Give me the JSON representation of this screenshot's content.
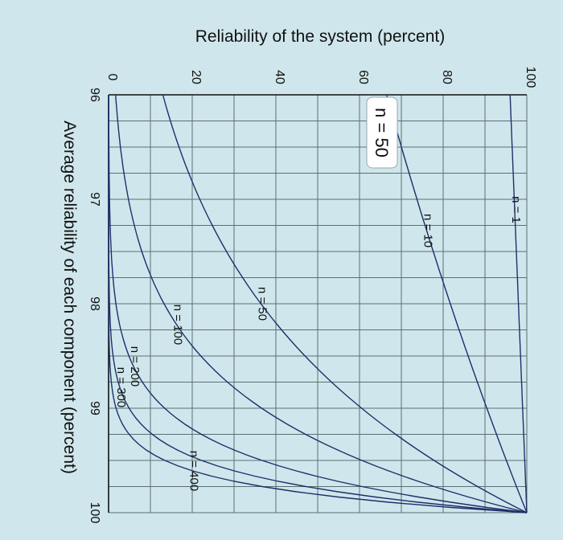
{
  "chart_data": {
    "type": "line",
    "xlabel": "Average reliability of each component (percent)",
    "ylabel": "Reliability of the system (percent)",
    "xlim": [
      96,
      100
    ],
    "ylim": [
      0,
      100
    ],
    "xticks": [
      "96",
      "97",
      "98",
      "99",
      "100"
    ],
    "yticks": [
      "0",
      "20",
      "40",
      "60",
      "80",
      "100"
    ],
    "grid": true,
    "orientation": "rotated 90° clockwise",
    "x_step": 0.05,
    "series": [
      {
        "name": "n = 1",
        "exponent": 1
      },
      {
        "name": "n = 10",
        "exponent": 10
      },
      {
        "name": "n = 50",
        "exponent": 50
      },
      {
        "name": "n = 100",
        "exponent": 100
      },
      {
        "name": "n = 200",
        "exponent": 200
      },
      {
        "name": "n = 300",
        "exponent": 300
      },
      {
        "name": "n = 400",
        "exponent": 400
      }
    ],
    "callout": "n = 50",
    "colors": {
      "curve": "#1f2f6b",
      "grid": "#5b6f73",
      "axis": "#111111",
      "background": "#cfe7ec",
      "callout_bg": "#ffffff"
    }
  }
}
